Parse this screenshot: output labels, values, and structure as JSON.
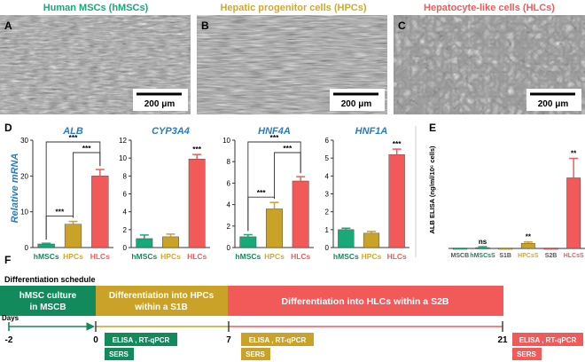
{
  "colors": {
    "hmsc": "#19a877",
    "hpc": "#d4a72c",
    "hlc": "#f25a5a",
    "blue": "#2a7bbf",
    "dark_green": "#128a5c",
    "gold_bar": "#c9a227",
    "red_bar": "#f25a5a",
    "axis": "#333333"
  },
  "panelA": {
    "letter": "A",
    "title": "Human MSCs (hMSCs)",
    "scale": "200 μm"
  },
  "panelB": {
    "letter": "B",
    "title": "Hepatic progenitor cells (HPCs)",
    "scale": "200 μm"
  },
  "panelC": {
    "letter": "C",
    "title": "Hepatocyte-like cells (HLCs)",
    "scale": "200 μm"
  },
  "panelD": {
    "letter": "D",
    "ylabel": "Relative mRNA"
  },
  "panelE": {
    "letter": "E",
    "ylabel": "ALB ELISA (ng/ml/10⁶ cells)"
  },
  "panelF": {
    "letter": "F",
    "title": "Differentiation schedule",
    "days_label": "Days"
  },
  "chart_data": [
    {
      "type": "bar",
      "title": "ALB",
      "ylabel": "Relative mRNA",
      "categories": [
        "hMSCs",
        "HPCs",
        "HLCs"
      ],
      "values": [
        1.0,
        6.5,
        20.0
      ],
      "errors": [
        0.2,
        0.8,
        1.8
      ],
      "ylim": [
        0,
        30
      ],
      "ticks": [
        0,
        10,
        20,
        30
      ],
      "significance": [
        {
          "from": 0,
          "to": 2,
          "label": "***"
        },
        {
          "from": 1,
          "to": 2,
          "label": "***"
        },
        {
          "from": 0,
          "to": 1,
          "label": "***"
        }
      ]
    },
    {
      "type": "bar",
      "title": "CYP3A4",
      "categories": [
        "hMSCs",
        "HPCs",
        "HLCs"
      ],
      "values": [
        1.0,
        1.2,
        9.9
      ],
      "errors": [
        0.4,
        0.3,
        0.5
      ],
      "ylim": [
        0,
        12
      ],
      "ticks": [
        0,
        2,
        4,
        6,
        8,
        10,
        12
      ],
      "significance": [
        {
          "bar": 2,
          "label": "***"
        }
      ]
    },
    {
      "type": "bar",
      "title": "HNF4A",
      "categories": [
        "hMSCs",
        "HPCs",
        "HLCs"
      ],
      "values": [
        1.0,
        3.6,
        6.2
      ],
      "errors": [
        0.2,
        0.6,
        0.4
      ],
      "ylim": [
        0,
        10
      ],
      "ticks": [
        0,
        2,
        4,
        6,
        8,
        10
      ],
      "significance": [
        {
          "from": 0,
          "to": 2,
          "label": "***"
        },
        {
          "from": 1,
          "to": 2,
          "label": "***"
        },
        {
          "from": 0,
          "to": 1,
          "label": "***"
        }
      ]
    },
    {
      "type": "bar",
      "title": "HNF1A",
      "categories": [
        "hMSCs",
        "HPCs",
        "HLCs"
      ],
      "values": [
        1.0,
        0.8,
        5.2
      ],
      "errors": [
        0.08,
        0.1,
        0.3
      ],
      "ylim": [
        0,
        6
      ],
      "ticks": [
        0,
        1,
        2,
        3,
        4,
        5,
        6
      ],
      "significance": [
        {
          "bar": 2,
          "label": "***"
        }
      ]
    },
    {
      "type": "bar",
      "title": "",
      "ylabel": "ALB ELISA (ng/ml/10⁶ cells)",
      "categories": [
        "MSCB",
        "hMSCsS",
        "S1B",
        "HPCsS",
        "S2B",
        "HLCsS"
      ],
      "values": [
        0.1,
        0.2,
        0.1,
        1.2,
        0.1,
        16.3
      ],
      "errors": [
        0,
        0.2,
        0,
        0.3,
        0,
        4.5
      ],
      "ylim": [
        0,
        25
      ],
      "significance": [
        {
          "bar": 1,
          "label": "ns"
        },
        {
          "bar": 3,
          "label": "**"
        },
        {
          "bar": 5,
          "label": "**"
        }
      ]
    }
  ],
  "schedule": {
    "phases": [
      {
        "label_line1": "hMSC culture",
        "label_line2": "in MSCB"
      },
      {
        "label_line1": "Differentiation into HPCs",
        "label_line2": "within a S1B"
      },
      {
        "label_line1": "Differentiation into HLCs within a S2B",
        "label_line2": ""
      }
    ],
    "days": [
      "-2",
      "0",
      "7",
      "21"
    ],
    "assays": [
      {
        "elisa": "ELISA , RT-qPCR",
        "sers": "SERS"
      },
      {
        "elisa": "ELISA , RT-qPCR",
        "sers": "SERS"
      },
      {
        "elisa": "ELISA , RT-qPCR",
        "sers": "SERS"
      }
    ]
  }
}
